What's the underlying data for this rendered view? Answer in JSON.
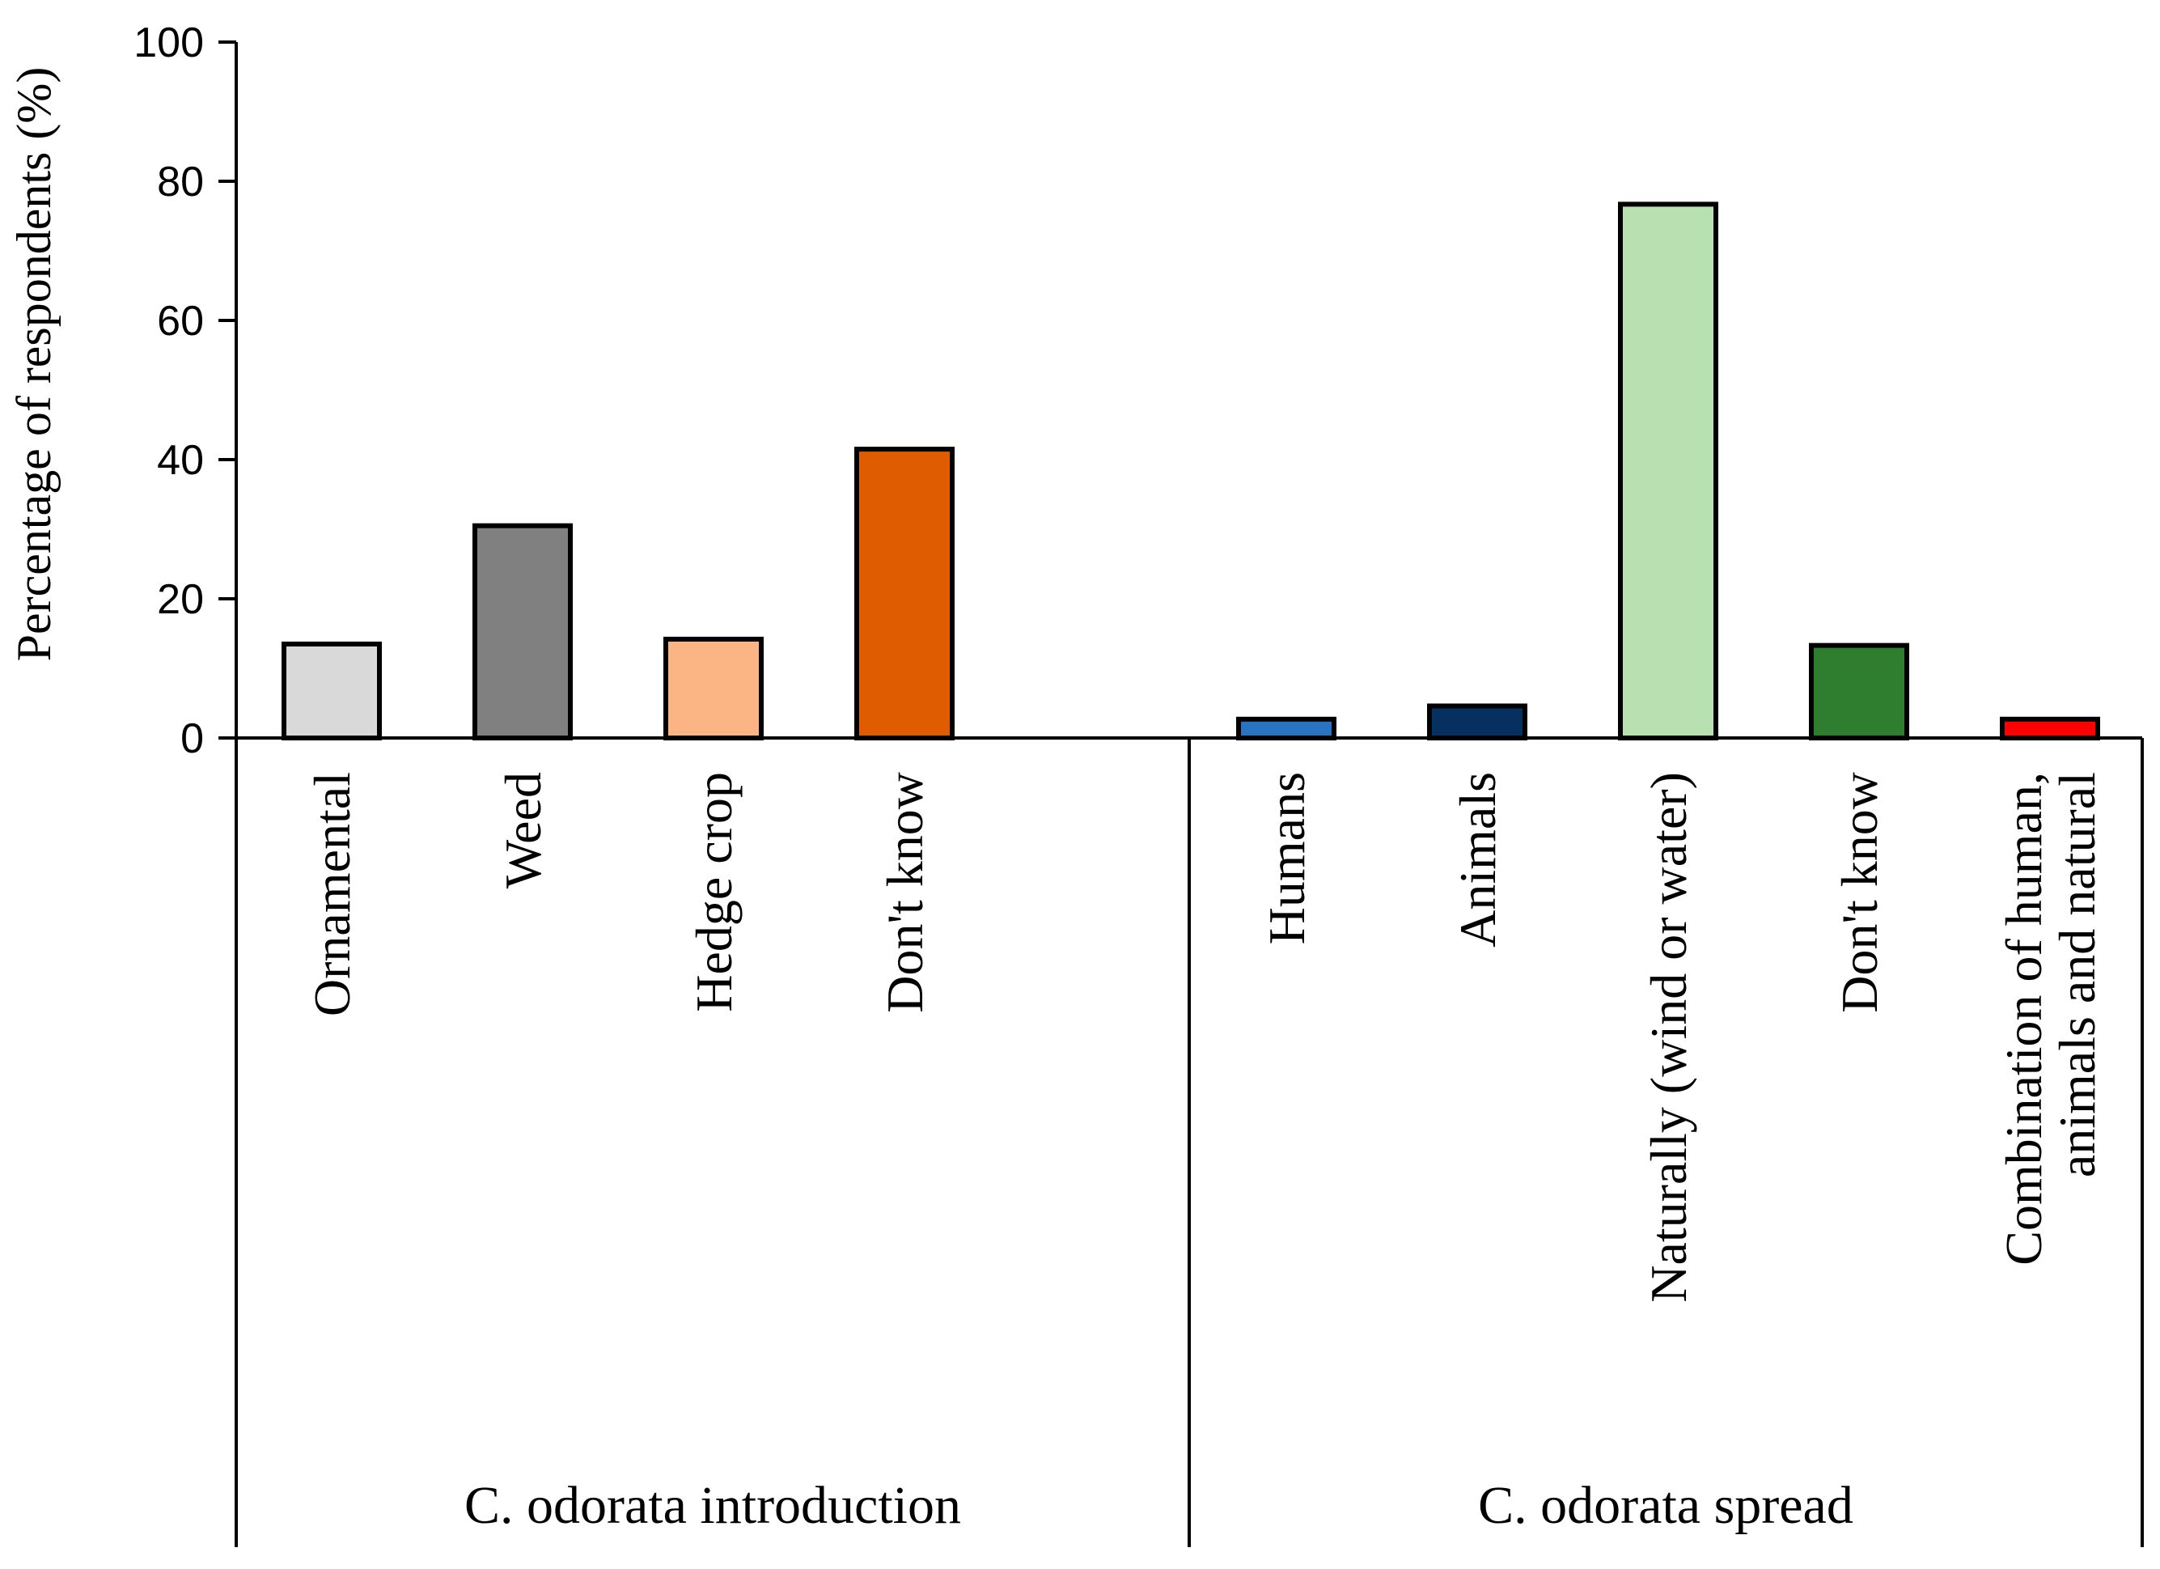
{
  "chart_data": {
    "type": "bar",
    "title": "",
    "xlabel": "",
    "ylabel": "Percentage of respondents (%)",
    "ylim": [
      0,
      100
    ],
    "yticks": [
      0,
      20,
      40,
      60,
      80,
      100
    ],
    "grid": false,
    "groups": [
      {
        "name": "C. odorata introduction",
        "categories": [
          {
            "label": "Ornamental",
            "value": 13.5,
            "color": "#d9d9d9"
          },
          {
            "label": "Weed",
            "value": 30.5,
            "color": "#808080"
          },
          {
            "label": "Hedge crop",
            "value": 14.2,
            "color": "#fbb584"
          },
          {
            "label": "Don't know",
            "value": 41.5,
            "color": "#e05c00"
          }
        ]
      },
      {
        "name": "C. odorata spread",
        "categories": [
          {
            "label": "Humans",
            "value": 2.7,
            "color": "#2a72c2"
          },
          {
            "label": "Animals",
            "value": 4.6,
            "color": "#06305f"
          },
          {
            "label": "Naturally (wind or water)",
            "value": 76.7,
            "color": "#b9e0b0"
          },
          {
            "label": "Don't know",
            "value": 13.3,
            "color": "#2f7d2f"
          },
          {
            "label": "Combination of human,\nanimals and natural",
            "value": 2.7,
            "color": "#ff0000"
          }
        ]
      }
    ]
  }
}
